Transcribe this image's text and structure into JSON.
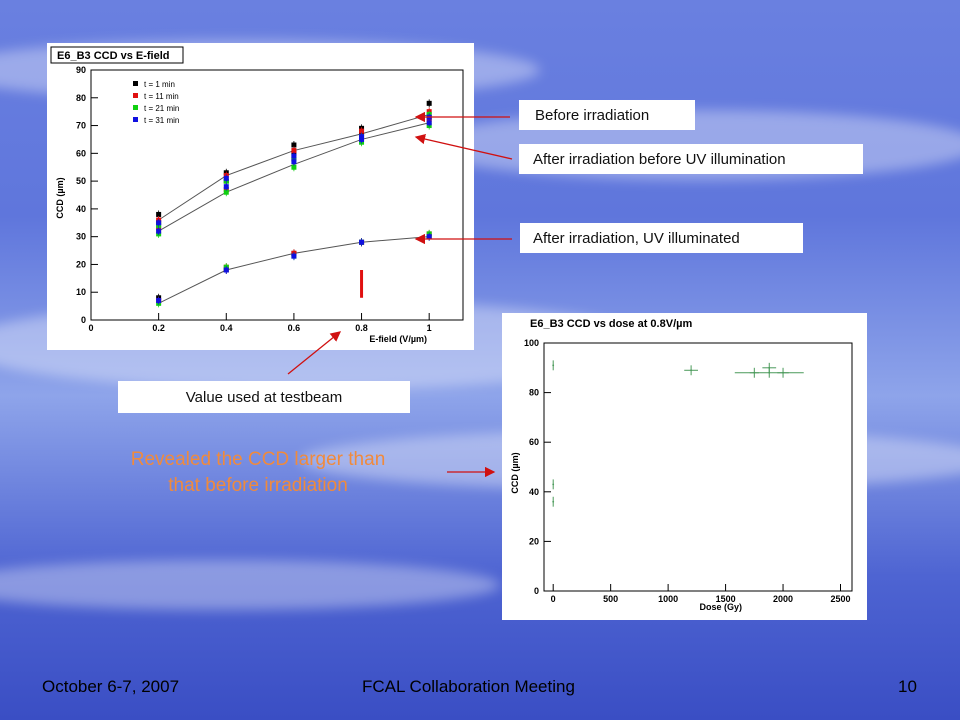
{
  "slide": {
    "note_line1": "Revealed the CCD larger than",
    "note_line2": "that before irradiation",
    "footer_left": "October 6-7, 2007",
    "footer_center": "FCAL Collaboration Meeting",
    "footer_right": "10"
  },
  "callouts": {
    "before": "Before irradiation",
    "after_before_uv": "After irradiation before UV illumination",
    "after_uv": "After irradiation, UV illuminated",
    "testbeam": "Value used at testbeam"
  },
  "colors": {
    "arrow": "#d01010",
    "note": "#f08a3c",
    "series": [
      "#000000",
      "#e01010",
      "#10d010",
      "#1010e0"
    ]
  },
  "chart_data": [
    {
      "type": "scatter",
      "title": "E6_B3 CCD vs E-field",
      "xlabel": "E-field (V/µm)",
      "ylabel": "CCD (µm)",
      "xlim": [
        0,
        1.1
      ],
      "ylim": [
        0,
        90
      ],
      "xticks": [
        0,
        0.2,
        0.4,
        0.6,
        0.8,
        1
      ],
      "yticks": [
        0,
        10,
        20,
        30,
        40,
        50,
        60,
        70,
        80,
        90
      ],
      "legend_position": "top-left",
      "x": [
        0.2,
        0.4,
        0.6,
        0.8,
        1.0
      ],
      "series": [
        {
          "name": "t = 1 min",
          "color": "#000000",
          "values_upper": [
            38,
            53,
            63,
            69,
            78
          ],
          "values_middle": [
            35,
            50,
            60,
            67,
            73
          ],
          "values_lower": [
            8,
            18,
            24,
            28,
            30
          ]
        },
        {
          "name": "t = 11 min",
          "color": "#e01010",
          "values_upper": [
            36,
            52,
            61,
            68,
            75
          ],
          "values_middle": [
            33,
            47,
            58,
            66,
            72
          ],
          "values_lower": [
            7,
            19,
            24,
            28,
            31
          ]
        },
        {
          "name": "t = 21 min",
          "color": "#10d010",
          "values_upper": [
            34,
            50,
            58,
            66,
            74
          ],
          "values_middle": [
            31,
            46,
            55,
            64,
            70
          ],
          "values_lower": [
            6,
            19,
            23,
            28,
            31
          ]
        },
        {
          "name": "t = 31 min",
          "color": "#1010e0",
          "values_upper": [
            35,
            51,
            59,
            66,
            73
          ],
          "values_middle": [
            32,
            48,
            57,
            65,
            71
          ],
          "values_lower": [
            7,
            18,
            23,
            28,
            30
          ]
        }
      ],
      "fit_lines": [
        [
          36,
          52,
          61,
          67,
          74
        ],
        [
          32,
          46,
          56,
          65,
          71
        ],
        [
          6,
          18,
          24,
          28,
          30
        ]
      ],
      "marker": {
        "x": 0.8,
        "y_from": 8,
        "y_to": 18,
        "color": "#e01010"
      }
    },
    {
      "type": "scatter",
      "title": "E6_B3 CCD vs dose at 0.8V/µm",
      "xlabel": "Dose (Gy)",
      "ylabel": "CCD (µm)",
      "xlim": [
        -80,
        2600
      ],
      "ylim": [
        0,
        100
      ],
      "xticks": [
        0,
        500,
        1000,
        1500,
        2000,
        2500
      ],
      "yticks": [
        0,
        20,
        40,
        60,
        80,
        100
      ],
      "points": [
        {
          "x": 0,
          "y": 91,
          "xerr": 0,
          "yerr": 2
        },
        {
          "x": 0,
          "y": 43,
          "xerr": 0,
          "yerr": 2
        },
        {
          "x": 0,
          "y": 36,
          "xerr": 0,
          "yerr": 2
        },
        {
          "x": 1200,
          "y": 89,
          "xerr": 60,
          "yerr": 2
        },
        {
          "x": 1750,
          "y": 88,
          "xerr": 40,
          "yerr": 2
        },
        {
          "x": 1880,
          "y": 90,
          "xerr": 60,
          "yerr": 2
        },
        {
          "x": 1880,
          "y": 88,
          "xerr": 300,
          "yerr": 2
        },
        {
          "x": 2000,
          "y": 88,
          "xerr": 50,
          "yerr": 2
        }
      ],
      "color": "#4a9a5a"
    }
  ]
}
